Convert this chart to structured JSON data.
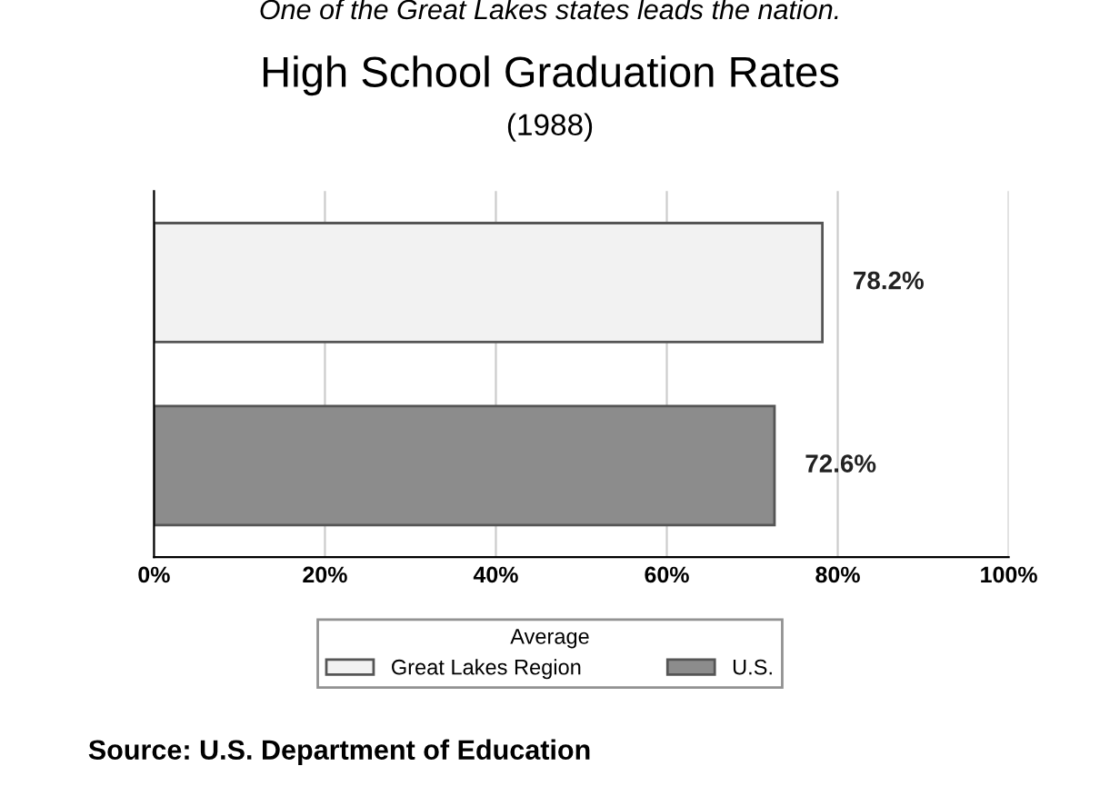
{
  "chart_data": {
    "type": "bar",
    "orientation": "horizontal",
    "title": "High School Graduation Rates",
    "subtitle": "(1988)",
    "categories": [
      null,
      null
    ],
    "series": [
      {
        "name": "Great Lakes Region",
        "color": "#f2f2f2",
        "values": [
          78.2,
          null
        ],
        "value_labels": [
          "78.2%",
          null
        ]
      },
      {
        "name": "U.S.",
        "color": "#8c8c8c",
        "values": [
          null,
          72.6
        ],
        "value_labels": [
          null,
          "72.6%"
        ]
      }
    ],
    "xlim": [
      0,
      100
    ],
    "xticks": [
      {
        "value": 0,
        "label": "0%"
      },
      {
        "value": 20,
        "label": "20%"
      },
      {
        "value": 40,
        "label": "40%"
      },
      {
        "value": 60,
        "label": "60%"
      },
      {
        "value": 80,
        "label": "80%"
      },
      {
        "value": 100,
        "label": "100%"
      }
    ],
    "grid": "x",
    "legend": "bottom",
    "legend_title": "Average",
    "annotations": [
      "One of the Great Lakes states leads the nation.",
      "Source: U.S. Department of Education"
    ]
  }
}
